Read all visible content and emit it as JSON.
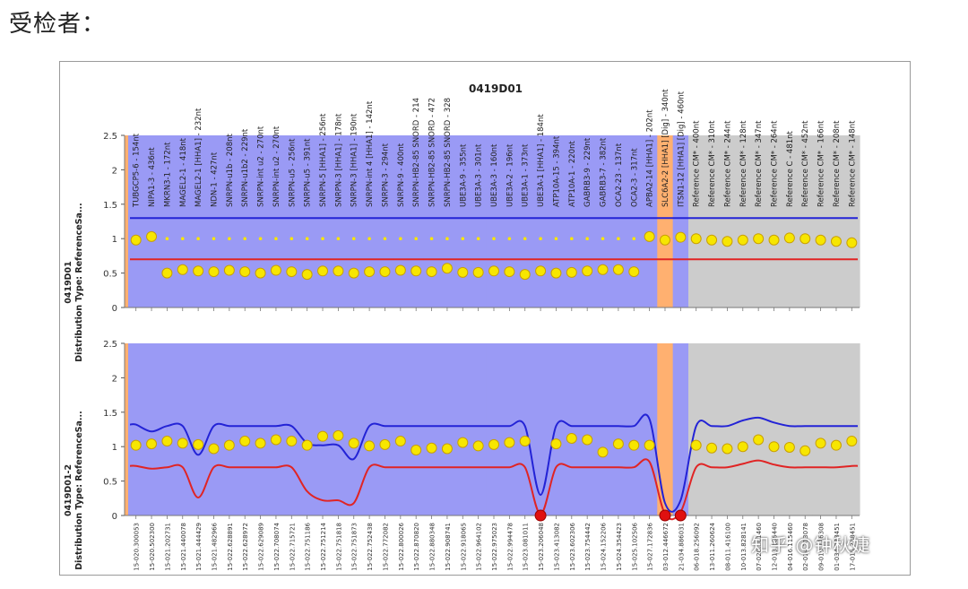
{
  "heading": "受检者：",
  "watermark": "知乎 @钟秋婕",
  "colors": {
    "probe_bg": "#9a9af5",
    "control_bg": "#ffb070",
    "reference_bg": "#cccccc",
    "upper_line": "#2323d6",
    "lower_line": "#e02424",
    "marker": "#f7e600",
    "marker_stroke": "#c9a000",
    "deleted": "#e01010"
  },
  "chart_data": [
    {
      "type": "scatter",
      "title": "0419D01",
      "ylabel_line1": "0419D01",
      "ylabel_line2": "Distribution Type: ReferenceSa...",
      "ylim": [
        0,
        2.5
      ],
      "yticks": [
        "0",
        "0.5",
        "1",
        "1.5",
        "2",
        "2.5"
      ],
      "regions": [
        "probe",
        "probe",
        "probe",
        "probe",
        "probe",
        "probe",
        "probe",
        "probe",
        "probe",
        "probe",
        "probe",
        "probe",
        "probe",
        "probe",
        "probe",
        "probe",
        "probe",
        "probe",
        "probe",
        "probe",
        "probe",
        "probe",
        "probe",
        "probe",
        "probe",
        "probe",
        "probe",
        "probe",
        "probe",
        "probe",
        "probe",
        "probe",
        "probe",
        "probe",
        "control",
        "probe",
        "reference",
        "reference",
        "reference",
        "reference",
        "reference",
        "reference",
        "reference",
        "reference",
        "reference",
        "reference",
        "reference"
      ],
      "probe_labels": [
        "TUBGCP5-6 - 154nt",
        "NIPA1-3 - 436nt",
        "MKRN3-1 - 172nt",
        "MAGEL2-1 - 418nt",
        "MAGEL2-1 [HHA1] - 232nt",
        "NDN-1 - 427nt",
        "SNRPN-u1b - 208nt",
        "SNRPN-u1b2 - 229nt",
        "SNRPN-int u2 - 270nt",
        "SNRPN-int u2 - 270nt",
        "SNRPN-u5 - 256nt",
        "SNRPN-u5 - 391nt",
        "SNRPN-5 [HHA1] - 256nt",
        "SNRPN-3 [HHA1] - 178nt",
        "SNRPN-3 [HHA1] - 190nt",
        "SNRPN-int 4 [HHA1] - 142nt",
        "SNRPN-3 - 294nt",
        "SNRPN-9 - 400nt",
        "SNRPN-HB2-85 SNORD - 214",
        "SNRPN-HB2-85 SNORD - 472",
        "SNRPN-HB2-85 SNORD - 328",
        "UBE3A-9 - 355nt",
        "UBE3A-3 - 301nt",
        "UBE3A-3 - 160nt",
        "UBE3A-2 - 196nt",
        "UBE3A-1 - 373nt",
        "UBE3A-1 [HHA1] - 184nt",
        "ATP10A-15 - 394nt",
        "ATP10A-1 - 220nt",
        "GABRB3-9 - 229nt",
        "GABRB3-7 - 382nt",
        "OCA2-23 - 137nt",
        "OCA2-3 - 317nt",
        "APBA2-14 [HHA1] - 202nt",
        "SLC6A2-2 [HHA1] [Dig] - 340nt",
        "ITSN1-12 [HHA1] [Dig] - 460nt",
        "Reference CM* - 400nt",
        "Reference CM* - 310nt",
        "Reference CM* - 244nt",
        "Reference CM* - 128nt",
        "Reference CM* - 347nt",
        "Reference CM* - 264nt",
        "Reference C - 481nt",
        "Reference CM* - 452nt",
        "Reference CM* - 166nt",
        "Reference CM* - 208nt",
        "Reference CM* - 148nt"
      ],
      "series": [
        {
          "name": "ratio",
          "values": [
            0.98,
            1.03,
            0.5,
            0.55,
            0.53,
            0.52,
            0.54,
            0.52,
            0.5,
            0.54,
            0.52,
            0.48,
            0.53,
            0.53,
            0.5,
            0.52,
            0.52,
            0.54,
            0.53,
            0.52,
            0.57,
            0.51,
            0.51,
            0.53,
            0.52,
            0.48,
            0.53,
            0.5,
            0.51,
            0.53,
            0.55,
            0.55,
            0.52,
            1.03,
            0.98,
            1.02,
            1.0,
            0.98,
            0.96,
            0.98,
            1.0,
            0.98,
            1.01,
            1.0,
            0.98,
            0.96,
            0.94
          ]
        },
        {
          "name": "upper_bound",
          "values": [
            1.3,
            1.3,
            1.3,
            1.3,
            1.3,
            1.3,
            1.3,
            1.3,
            1.3,
            1.3,
            1.3,
            1.3,
            1.3,
            1.3,
            1.3,
            1.3,
            1.3,
            1.3,
            1.3,
            1.3,
            1.3,
            1.3,
            1.3,
            1.3,
            1.3,
            1.3,
            1.3,
            1.3,
            1.3,
            1.3,
            1.3,
            1.3,
            1.3,
            1.3,
            1.3,
            1.3,
            1.3,
            1.3,
            1.3,
            1.3,
            1.3,
            1.3,
            1.3,
            1.3,
            1.3,
            1.3,
            1.3
          ]
        },
        {
          "name": "lower_bound",
          "values": [
            0.7,
            0.7,
            0.7,
            0.7,
            0.7,
            0.7,
            0.7,
            0.7,
            0.7,
            0.7,
            0.7,
            0.7,
            0.7,
            0.7,
            0.7,
            0.7,
            0.7,
            0.7,
            0.7,
            0.7,
            0.7,
            0.7,
            0.7,
            0.7,
            0.7,
            0.7,
            0.7,
            0.7,
            0.7,
            0.7,
            0.7,
            0.7,
            0.7,
            0.7,
            0.7,
            0.7,
            0.7,
            0.7,
            0.7,
            0.7,
            0.7,
            0.7,
            0.7,
            0.7,
            0.7,
            0.7,
            0.7
          ]
        }
      ]
    },
    {
      "type": "scatter",
      "title": "",
      "ylabel_line1": "0419D01-2",
      "ylabel_line2": "Distribution Type: ReferenceSa...",
      "ylim": [
        0,
        2.5
      ],
      "yticks": [
        "0",
        "0.5",
        "1",
        "1.5",
        "2",
        "2.5"
      ],
      "regions": [
        "probe",
        "probe",
        "probe",
        "probe",
        "probe",
        "probe",
        "probe",
        "probe",
        "probe",
        "probe",
        "probe",
        "probe",
        "probe",
        "probe",
        "probe",
        "probe",
        "probe",
        "probe",
        "probe",
        "probe",
        "probe",
        "probe",
        "probe",
        "probe",
        "probe",
        "probe",
        "probe",
        "probe",
        "probe",
        "probe",
        "probe",
        "probe",
        "probe",
        "probe",
        "control",
        "probe",
        "reference",
        "reference",
        "reference",
        "reference",
        "reference",
        "reference",
        "reference",
        "reference",
        "reference",
        "reference",
        "reference"
      ],
      "position_labels": [
        "15-020.300053",
        "15-020.502300",
        "15-021.202731",
        "15-021.440078",
        "15-021.444429",
        "15-021.482966",
        "15-022.628891",
        "15-022.628972",
        "15-022.629089",
        "15-022.708074",
        "15-022.715721",
        "15-022.751186",
        "15-022.751214",
        "15-022.751818",
        "15-022.751873",
        "15-022.752438",
        "15-022.772082",
        "15-022.800026",
        "15-022.870820",
        "15-022.880348",
        "15-022.908741",
        "15-022.918065",
        "15-022.964102",
        "15-022.975023",
        "15-022.994478",
        "15-023.081011",
        "15-023.206048",
        "15-023.413082",
        "15-023.602306",
        "15-023.754442",
        "15-024.152206",
        "15-024.354423",
        "15-025.102506",
        "15-027.172836",
        "03-012.446672",
        "21-034.886031",
        "06-018.256092",
        "13-011.260624",
        "08-011.416100",
        "10-013.828141",
        "07-020.101460",
        "12-013.186440",
        "04-016.115460",
        "02-014.213078",
        "09-019.126308",
        "01-034.238451",
        "17-015.238451"
      ],
      "deleted_indices": [
        26,
        34,
        35
      ],
      "series": [
        {
          "name": "ratio",
          "values": [
            1.02,
            1.04,
            1.08,
            1.05,
            1.03,
            0.97,
            1.02,
            1.08,
            1.05,
            1.1,
            1.08,
            1.02,
            1.15,
            1.16,
            1.05,
            1.01,
            1.03,
            1.08,
            0.95,
            0.98,
            0.97,
            1.06,
            1.01,
            1.03,
            1.06,
            1.08,
            0.0,
            1.04,
            1.12,
            1.1,
            0.92,
            1.04,
            1.02,
            1.02,
            0.0,
            0.0,
            1.02,
            0.98,
            0.97,
            1.0,
            1.1,
            1.0,
            0.99,
            0.94,
            1.05,
            1.02,
            1.08
          ]
        },
        {
          "name": "upper_bound",
          "values": [
            1.32,
            1.22,
            1.3,
            1.3,
            0.88,
            1.3,
            1.3,
            1.3,
            1.3,
            1.3,
            1.3,
            1.05,
            1.02,
            1.02,
            0.82,
            1.3,
            1.3,
            1.3,
            1.3,
            1.3,
            1.3,
            1.3,
            1.3,
            1.3,
            1.3,
            1.3,
            0.3,
            1.3,
            1.3,
            1.3,
            1.3,
            1.3,
            1.3,
            1.4,
            0.18,
            0.22,
            1.3,
            1.3,
            1.3,
            1.38,
            1.42,
            1.35,
            1.3,
            1.3,
            1.3,
            1.3,
            1.3
          ]
        },
        {
          "name": "lower_bound",
          "values": [
            0.72,
            0.68,
            0.7,
            0.7,
            0.26,
            0.7,
            0.7,
            0.7,
            0.7,
            0.7,
            0.7,
            0.35,
            0.22,
            0.22,
            0.18,
            0.7,
            0.7,
            0.7,
            0.7,
            0.7,
            0.7,
            0.7,
            0.7,
            0.7,
            0.7,
            0.7,
            0.02,
            0.7,
            0.7,
            0.7,
            0.7,
            0.7,
            0.7,
            0.78,
            0.02,
            0.05,
            0.7,
            0.7,
            0.7,
            0.75,
            0.8,
            0.74,
            0.7,
            0.7,
            0.7,
            0.7,
            0.72
          ]
        }
      ]
    }
  ]
}
